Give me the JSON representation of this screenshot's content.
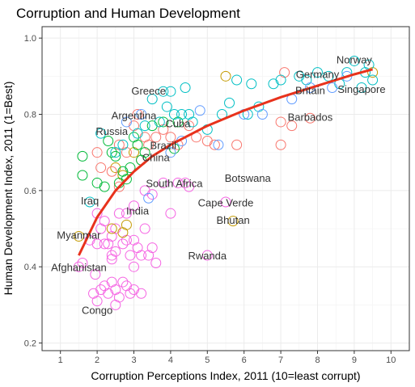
{
  "chart_data": {
    "type": "scatter",
    "title": "Corruption and Human Development",
    "xlabel": "Corruption Perceptions Index, 2011 (10=least corrupt)",
    "ylabel": "Human Development Index, 2011 (1=Best)",
    "xlim": [
      0.5,
      10.5
    ],
    "ylim": [
      0.18,
      1.03
    ],
    "x_ticks": [
      "1",
      "2",
      "3",
      "4",
      "5",
      "6",
      "7",
      "8",
      "9",
      "10"
    ],
    "y_ticks": [
      "0.2",
      "0.4",
      "0.6",
      "0.8",
      "1.0"
    ],
    "grid": true,
    "theme": "bw",
    "colors": {
      "trend": "#e8321c",
      "groups": [
        "#00ba38",
        "#c49a00",
        "#f8766d",
        "#00bfc4",
        "#619cff",
        "#f564e3"
      ]
    },
    "trend": {
      "type": "log-fit",
      "points": [
        [
          1.5,
          0.43
        ],
        [
          2.0,
          0.53
        ],
        [
          2.5,
          0.6
        ],
        [
          3.0,
          0.65
        ],
        [
          3.5,
          0.69
        ],
        [
          4.0,
          0.72
        ],
        [
          5.0,
          0.77
        ],
        [
          6.0,
          0.81
        ],
        [
          7.0,
          0.845
        ],
        [
          8.0,
          0.875
        ],
        [
          9.0,
          0.905
        ],
        [
          9.5,
          0.918
        ]
      ]
    },
    "points": [
      {
        "x": 1.5,
        "y": 0.4,
        "g": 5
      },
      {
        "x": 1.6,
        "y": 0.41,
        "g": 5
      },
      {
        "x": 1.8,
        "y": 0.47,
        "g": 5
      },
      {
        "x": 2.0,
        "y": 0.46,
        "g": 5
      },
      {
        "x": 2.0,
        "y": 0.54,
        "g": 5
      },
      {
        "x": 2.1,
        "y": 0.5,
        "g": 5
      },
      {
        "x": 2.2,
        "y": 0.46,
        "g": 5
      },
      {
        "x": 2.2,
        "y": 0.52,
        "g": 5
      },
      {
        "x": 2.3,
        "y": 0.46,
        "g": 5
      },
      {
        "x": 2.4,
        "y": 0.48,
        "g": 5
      },
      {
        "x": 2.4,
        "y": 0.43,
        "g": 5
      },
      {
        "x": 2.5,
        "y": 0.44,
        "g": 5
      },
      {
        "x": 2.5,
        "y": 0.5,
        "g": 5
      },
      {
        "x": 2.6,
        "y": 0.54,
        "g": 5
      },
      {
        "x": 2.7,
        "y": 0.46,
        "g": 5
      },
      {
        "x": 2.8,
        "y": 0.47,
        "g": 5
      },
      {
        "x": 2.8,
        "y": 0.54,
        "g": 5
      },
      {
        "x": 2.9,
        "y": 0.43,
        "g": 5
      },
      {
        "x": 3.0,
        "y": 0.47,
        "g": 5
      },
      {
        "x": 3.0,
        "y": 0.4,
        "g": 5
      },
      {
        "x": 3.1,
        "y": 0.45,
        "g": 5
      },
      {
        "x": 3.2,
        "y": 0.43,
        "g": 5
      },
      {
        "x": 3.3,
        "y": 0.5,
        "g": 5
      },
      {
        "x": 3.4,
        "y": 0.43,
        "g": 5
      },
      {
        "x": 3.5,
        "y": 0.45,
        "g": 5
      },
      {
        "x": 3.6,
        "y": 0.41,
        "g": 5
      },
      {
        "x": 2.4,
        "y": 0.42,
        "g": 5
      },
      {
        "x": 1.9,
        "y": 0.33,
        "g": 5
      },
      {
        "x": 2.0,
        "y": 0.31,
        "g": 5
      },
      {
        "x": 2.1,
        "y": 0.34,
        "g": 5
      },
      {
        "x": 2.2,
        "y": 0.35,
        "g": 5
      },
      {
        "x": 2.3,
        "y": 0.33,
        "g": 5
      },
      {
        "x": 2.4,
        "y": 0.36,
        "g": 5
      },
      {
        "x": 2.5,
        "y": 0.34,
        "g": 5
      },
      {
        "x": 2.5,
        "y": 0.3,
        "g": 5
      },
      {
        "x": 2.6,
        "y": 0.32,
        "g": 5
      },
      {
        "x": 2.7,
        "y": 0.36,
        "g": 5
      },
      {
        "x": 2.9,
        "y": 0.33,
        "g": 5
      },
      {
        "x": 3.0,
        "y": 0.34,
        "g": 5
      },
      {
        "x": 3.2,
        "y": 0.33,
        "g": 5
      },
      {
        "x": 2.8,
        "y": 0.35,
        "g": 5
      },
      {
        "x": 1.95,
        "y": 0.38,
        "g": 5
      },
      {
        "x": 3.0,
        "y": 0.56,
        "g": 5
      },
      {
        "x": 3.3,
        "y": 0.6,
        "g": 5
      },
      {
        "x": 3.8,
        "y": 0.62,
        "g": 5
      },
      {
        "x": 4.0,
        "y": 0.54,
        "g": 5
      },
      {
        "x": 4.2,
        "y": 0.62,
        "g": 5
      },
      {
        "x": 4.4,
        "y": 0.62,
        "g": 5
      },
      {
        "x": 4.5,
        "y": 0.61,
        "g": 5
      },
      {
        "x": 5.0,
        "y": 0.43,
        "g": 5
      },
      {
        "x": 5.5,
        "y": 0.57,
        "g": 5
      },
      {
        "x": 3.5,
        "y": 0.59,
        "g": 5
      },
      {
        "x": 1.5,
        "y": 0.48,
        "g": 1
      },
      {
        "x": 2.7,
        "y": 0.49,
        "g": 1
      },
      {
        "x": 2.8,
        "y": 0.51,
        "g": 1
      },
      {
        "x": 2.5,
        "y": 0.66,
        "g": 1
      },
      {
        "x": 2.7,
        "y": 0.64,
        "g": 1
      },
      {
        "x": 3.0,
        "y": 0.7,
        "g": 1
      },
      {
        "x": 5.5,
        "y": 0.9,
        "g": 1
      },
      {
        "x": 5.7,
        "y": 0.52,
        "g": 1
      },
      {
        "x": 9.5,
        "y": 0.91,
        "g": 1
      },
      {
        "x": 2.4,
        "y": 0.5,
        "g": 1
      },
      {
        "x": 2.0,
        "y": 0.7,
        "g": 2
      },
      {
        "x": 2.1,
        "y": 0.66,
        "g": 2
      },
      {
        "x": 2.4,
        "y": 0.65,
        "g": 2
      },
      {
        "x": 2.6,
        "y": 0.72,
        "g": 2
      },
      {
        "x": 2.8,
        "y": 0.7,
        "g": 2
      },
      {
        "x": 3.0,
        "y": 0.77,
        "g": 2
      },
      {
        "x": 3.1,
        "y": 0.8,
        "g": 2
      },
      {
        "x": 3.2,
        "y": 0.68,
        "g": 2
      },
      {
        "x": 3.3,
        "y": 0.74,
        "g": 2
      },
      {
        "x": 3.4,
        "y": 0.72,
        "g": 2
      },
      {
        "x": 3.6,
        "y": 0.74,
        "g": 2
      },
      {
        "x": 3.8,
        "y": 0.76,
        "g": 2
      },
      {
        "x": 4.0,
        "y": 0.74,
        "g": 2
      },
      {
        "x": 4.2,
        "y": 0.72,
        "g": 2
      },
      {
        "x": 4.5,
        "y": 0.77,
        "g": 2
      },
      {
        "x": 4.7,
        "y": 0.74,
        "g": 2
      },
      {
        "x": 5.0,
        "y": 0.73,
        "g": 2
      },
      {
        "x": 5.2,
        "y": 0.72,
        "g": 2
      },
      {
        "x": 5.8,
        "y": 0.72,
        "g": 2
      },
      {
        "x": 7.0,
        "y": 0.78,
        "g": 2
      },
      {
        "x": 7.0,
        "y": 0.72,
        "g": 2
      },
      {
        "x": 7.3,
        "y": 0.77,
        "g": 2
      },
      {
        "x": 7.8,
        "y": 0.79,
        "g": 2
      },
      {
        "x": 7.1,
        "y": 0.91,
        "g": 2
      },
      {
        "x": 2.6,
        "y": 0.61,
        "g": 2
      },
      {
        "x": 1.6,
        "y": 0.69,
        "g": 0
      },
      {
        "x": 1.6,
        "y": 0.64,
        "g": 0
      },
      {
        "x": 2.0,
        "y": 0.62,
        "g": 0
      },
      {
        "x": 2.2,
        "y": 0.61,
        "g": 0
      },
      {
        "x": 2.3,
        "y": 0.73,
        "g": 0
      },
      {
        "x": 2.4,
        "y": 0.7,
        "g": 0
      },
      {
        "x": 2.5,
        "y": 0.69,
        "g": 0
      },
      {
        "x": 2.6,
        "y": 0.62,
        "g": 0
      },
      {
        "x": 2.7,
        "y": 0.65,
        "g": 0
      },
      {
        "x": 2.8,
        "y": 0.63,
        "g": 0
      },
      {
        "x": 2.9,
        "y": 0.66,
        "g": 0
      },
      {
        "x": 3.0,
        "y": 0.74,
        "g": 0
      },
      {
        "x": 3.1,
        "y": 0.72,
        "g": 0
      },
      {
        "x": 3.3,
        "y": 0.7,
        "g": 0
      },
      {
        "x": 3.5,
        "y": 0.77,
        "g": 0
      },
      {
        "x": 3.8,
        "y": 0.78,
        "g": 0
      },
      {
        "x": 4.1,
        "y": 0.71,
        "g": 0
      },
      {
        "x": 4.2,
        "y": 0.78,
        "g": 0
      },
      {
        "x": 3.2,
        "y": 0.68,
        "g": 0
      },
      {
        "x": 1.8,
        "y": 0.57,
        "g": 3
      },
      {
        "x": 2.1,
        "y": 0.75,
        "g": 3
      },
      {
        "x": 2.5,
        "y": 0.7,
        "g": 3
      },
      {
        "x": 2.7,
        "y": 0.72,
        "g": 3
      },
      {
        "x": 3.1,
        "y": 0.75,
        "g": 3
      },
      {
        "x": 3.3,
        "y": 0.77,
        "g": 3
      },
      {
        "x": 3.5,
        "y": 0.84,
        "g": 3
      },
      {
        "x": 3.7,
        "y": 0.78,
        "g": 3
      },
      {
        "x": 3.9,
        "y": 0.82,
        "g": 3
      },
      {
        "x": 4.0,
        "y": 0.86,
        "g": 3
      },
      {
        "x": 4.1,
        "y": 0.8,
        "g": 3
      },
      {
        "x": 4.3,
        "y": 0.8,
        "g": 3
      },
      {
        "x": 4.5,
        "y": 0.8,
        "g": 3
      },
      {
        "x": 4.6,
        "y": 0.78,
        "g": 3
      },
      {
        "x": 5.0,
        "y": 0.76,
        "g": 3
      },
      {
        "x": 5.4,
        "y": 0.8,
        "g": 3
      },
      {
        "x": 5.6,
        "y": 0.83,
        "g": 3
      },
      {
        "x": 5.8,
        "y": 0.89,
        "g": 3
      },
      {
        "x": 6.1,
        "y": 0.8,
        "g": 3
      },
      {
        "x": 6.2,
        "y": 0.88,
        "g": 3
      },
      {
        "x": 6.4,
        "y": 0.82,
        "g": 3
      },
      {
        "x": 6.8,
        "y": 0.88,
        "g": 3
      },
      {
        "x": 7.0,
        "y": 0.89,
        "g": 3
      },
      {
        "x": 7.5,
        "y": 0.9,
        "g": 3
      },
      {
        "x": 7.7,
        "y": 0.89,
        "g": 3
      },
      {
        "x": 8.0,
        "y": 0.91,
        "g": 3
      },
      {
        "x": 8.3,
        "y": 0.9,
        "g": 3
      },
      {
        "x": 8.6,
        "y": 0.88,
        "g": 3
      },
      {
        "x": 8.8,
        "y": 0.91,
        "g": 3
      },
      {
        "x": 9.0,
        "y": 0.94,
        "g": 3
      },
      {
        "x": 9.3,
        "y": 0.91,
        "g": 3
      },
      {
        "x": 9.4,
        "y": 0.93,
        "g": 3
      },
      {
        "x": 9.5,
        "y": 0.89,
        "g": 3
      },
      {
        "x": 9.2,
        "y": 0.87,
        "g": 3
      },
      {
        "x": 4.4,
        "y": 0.87,
        "g": 3
      },
      {
        "x": 3.8,
        "y": 0.86,
        "g": 3
      },
      {
        "x": 3.4,
        "y": 0.58,
        "g": 4
      },
      {
        "x": 3.2,
        "y": 0.8,
        "g": 4
      },
      {
        "x": 4.0,
        "y": 0.7,
        "g": 4
      },
      {
        "x": 4.3,
        "y": 0.73,
        "g": 4
      },
      {
        "x": 4.8,
        "y": 0.81,
        "g": 4
      },
      {
        "x": 5.3,
        "y": 0.72,
        "g": 4
      },
      {
        "x": 6.0,
        "y": 0.8,
        "g": 4
      },
      {
        "x": 6.5,
        "y": 0.8,
        "g": 4
      },
      {
        "x": 7.3,
        "y": 0.84,
        "g": 4
      },
      {
        "x": 7.8,
        "y": 0.87,
        "g": 4
      },
      {
        "x": 8.4,
        "y": 0.87,
        "g": 4
      },
      {
        "x": 8.8,
        "y": 0.9,
        "g": 4
      },
      {
        "x": 2.8,
        "y": 0.78,
        "g": 4
      }
    ],
    "labels": [
      {
        "text": "Norway",
        "x": 9.0,
        "y": 0.943
      },
      {
        "text": "Germany",
        "x": 8.0,
        "y": 0.905
      },
      {
        "text": "Britain",
        "x": 7.8,
        "y": 0.863
      },
      {
        "text": "Singapore",
        "x": 9.2,
        "y": 0.866
      },
      {
        "text": "Barbados",
        "x": 7.8,
        "y": 0.793
      },
      {
        "text": "Greece",
        "x": 3.4,
        "y": 0.861
      },
      {
        "text": "Argentina",
        "x": 3.0,
        "y": 0.797
      },
      {
        "text": "Cuba",
        "x": 4.2,
        "y": 0.776
      },
      {
        "text": "Russia",
        "x": 2.4,
        "y": 0.755
      },
      {
        "text": "Brazil",
        "x": 3.8,
        "y": 0.718
      },
      {
        "text": "China",
        "x": 3.6,
        "y": 0.687
      },
      {
        "text": "South Africa",
        "x": 4.1,
        "y": 0.619
      },
      {
        "text": "Botswana",
        "x": 6.1,
        "y": 0.633
      },
      {
        "text": "Iraq",
        "x": 1.8,
        "y": 0.573
      },
      {
        "text": "Cape Verde",
        "x": 5.5,
        "y": 0.568
      },
      {
        "text": "India",
        "x": 3.1,
        "y": 0.547
      },
      {
        "text": "Bhutan",
        "x": 5.7,
        "y": 0.522
      },
      {
        "text": "Myanmar",
        "x": 1.5,
        "y": 0.483
      },
      {
        "text": "Rwanda",
        "x": 5.0,
        "y": 0.429
      },
      {
        "text": "Afghanistan",
        "x": 1.5,
        "y": 0.398
      },
      {
        "text": "Congo",
        "x": 2.0,
        "y": 0.286
      }
    ]
  }
}
